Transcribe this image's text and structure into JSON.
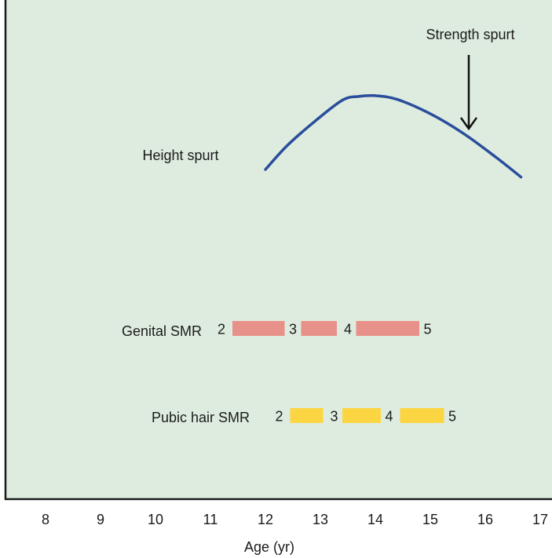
{
  "chart_data": {
    "type": "line",
    "title": "",
    "xlabel": "Age (yr)",
    "ylabel": "",
    "xlim": [
      7.6,
      17.1
    ],
    "x_ticks": [
      8,
      9,
      10,
      11,
      12,
      13,
      14,
      15,
      16,
      17
    ],
    "colors": {
      "background": "#deecdf",
      "curve": "#2a4d9c",
      "genital": "#e8918a",
      "pubic": "#fcd543",
      "axis": "#1a1a1a"
    },
    "height_curve": {
      "label": "Height spurt",
      "x": [
        12.0,
        12.4,
        12.9,
        13.4,
        13.7,
        14.0,
        14.4,
        15.0,
        15.6,
        16.2,
        16.65
      ],
      "rel": [
        0.0,
        0.32,
        0.64,
        0.92,
        0.97,
        0.98,
        0.93,
        0.74,
        0.48,
        0.16,
        -0.1
      ]
    },
    "strength_marker": {
      "label": "Strength spurt",
      "x": 15.7
    },
    "genital_smr": {
      "label": "Genital SMR",
      "bars": [
        {
          "x_start": 11.4,
          "x_end": 12.35
        },
        {
          "x_start": 12.65,
          "x_end": 13.3
        },
        {
          "x_start": 13.65,
          "x_end": 14.8
        }
      ],
      "stages": [
        {
          "label": "2",
          "x": 11.2
        },
        {
          "label": "3",
          "x": 12.5
        },
        {
          "label": "4",
          "x": 13.5
        },
        {
          "label": "5",
          "x": 14.95
        }
      ]
    },
    "pubic_smr": {
      "label": "Pubic hair SMR",
      "bars": [
        {
          "x_start": 12.45,
          "x_end": 13.05
        },
        {
          "x_start": 13.4,
          "x_end": 14.1
        },
        {
          "x_start": 14.45,
          "x_end": 15.25
        }
      ],
      "stages": [
        {
          "label": "2",
          "x": 12.25
        },
        {
          "label": "3",
          "x": 13.25
        },
        {
          "label": "4",
          "x": 14.25
        },
        {
          "label": "5",
          "x": 15.4
        }
      ]
    }
  }
}
